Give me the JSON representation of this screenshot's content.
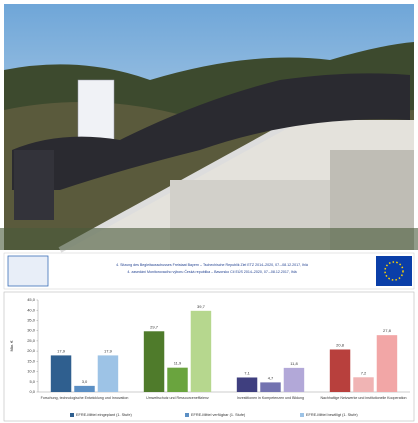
{
  "banner": {
    "line1": "4. Sitzung des Begleitausschusses Freistaat Bayern – Tschechische Republik Ziel ETZ 2014–2020, 07.–08.12.2017, Ihlá",
    "line2": "4. zasedání Monitorovacího výboru Česká republika – Bavorsko Cíl EÚS 2014–2020, 07.–08.12.2017, Ihlá"
  },
  "chart_data": {
    "type": "bar",
    "ylabel": "Mio. €",
    "categories": [
      "Forschung, technologische Entwicklung und Innovation",
      "Umweltschutz und Ressourceneffizienz",
      "Investitionen in Kompetenzen und Bildung",
      "Nachhaltige Netzwerke und institutionelle Kooperation"
    ],
    "series": [
      {
        "name": "EFRE-Mittel eingeplant (1. Stufe)",
        "colors": [
          "#2f5f8f",
          "#4f7b2b",
          "#3f3f7f",
          "#b8403d"
        ],
        "values": [
          17.9,
          29.7,
          7.1,
          20.8
        ],
        "value_labels": [
          "17,9",
          "29,7",
          "7,1",
          "20,8"
        ]
      },
      {
        "name": "EFRE-Mittel verfügbar (1. Stufe)",
        "colors": [
          "#5b8fc4",
          "#6aa43e",
          "#7373b0",
          "#f0b4b4"
        ],
        "values": [
          3.0,
          11.9,
          4.7,
          7.2
        ],
        "value_labels": [
          "3,0",
          "11,9",
          "4,7",
          "7,2"
        ]
      },
      {
        "name": "EFRE-Mittel bewilligt (1. Stufe)",
        "colors": [
          "#9dc3e6",
          "#b6d78e",
          "#b2a8d8",
          "#f2a6a6"
        ],
        "values": [
          17.9,
          39.7,
          11.8,
          27.8
        ],
        "value_labels": [
          "17,9",
          "39,7",
          "11,8",
          "27,8"
        ]
      }
    ],
    "ylim": [
      0,
      45
    ],
    "yticks": [
      {
        "value": 0,
        "label": "0,0"
      },
      {
        "value": 5,
        "label": "5,0"
      },
      {
        "value": 10,
        "label": "10,0"
      },
      {
        "value": 15,
        "label": "15,0"
      },
      {
        "value": 20,
        "label": "20,0"
      },
      {
        "value": 25,
        "label": "25,0"
      },
      {
        "value": 30,
        "label": "30,0"
      },
      {
        "value": 35,
        "label": "35,0"
      },
      {
        "value": 40,
        "label": "40,0"
      },
      {
        "value": 45,
        "label": "45,0"
      }
    ],
    "grid": false
  }
}
